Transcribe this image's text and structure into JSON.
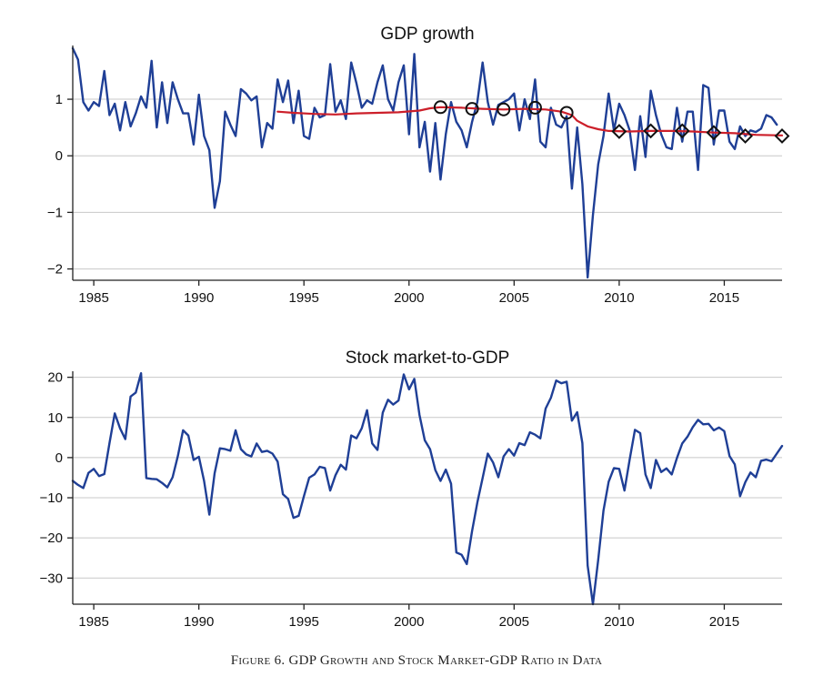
{
  "caption": "Figure 6. GDP Growth and Stock Market-GDP Ratio in Data",
  "colors": {
    "series": "#1f3f96",
    "trend": "#cc1f2a",
    "marker": "#111111",
    "grid": "#c8c8c8"
  },
  "chart_data": [
    {
      "type": "line",
      "title": "GDP growth",
      "xlabel": "",
      "ylabel": "",
      "xlim": [
        1984,
        2017.75
      ],
      "ylim": [
        -2.2,
        1.95
      ],
      "xticks": [
        1985,
        1990,
        1995,
        2000,
        2005,
        2010,
        2015
      ],
      "yticks": [
        -2,
        -1,
        0,
        1
      ],
      "ytick_labels": [
        "−2",
        "−1",
        "0",
        "1"
      ],
      "grid": true,
      "series": [
        {
          "role": "main",
          "x_start": 1984,
          "x_step": 0.25,
          "values": [
            1.9,
            1.7,
            0.95,
            0.8,
            0.95,
            0.88,
            1.5,
            0.72,
            0.92,
            0.45,
            0.95,
            0.52,
            0.75,
            1.05,
            0.85,
            1.68,
            0.5,
            1.3,
            0.58,
            1.3,
            1.0,
            0.75,
            0.75,
            0.2,
            1.08,
            0.35,
            0.1,
            -0.92,
            -0.45,
            0.78,
            0.55,
            0.35,
            1.18,
            1.1,
            0.98,
            1.05,
            0.15,
            0.58,
            0.48,
            1.35,
            0.95,
            1.33,
            0.58,
            1.15,
            0.35,
            0.3,
            0.85,
            0.68,
            0.72,
            1.62,
            0.78,
            0.98,
            0.65,
            1.65,
            1.28,
            0.85,
            0.98,
            0.92,
            1.3,
            1.6,
            1.0,
            0.8,
            1.3,
            1.6,
            0.38,
            1.8,
            0.15,
            0.6,
            -0.28,
            0.58,
            -0.42,
            0.38,
            0.95,
            0.6,
            0.45,
            0.15,
            0.6,
            0.95,
            1.65,
            0.95,
            0.55,
            0.9,
            0.95,
            1.0,
            1.1,
            0.45,
            1.0,
            0.65,
            1.35,
            0.25,
            0.15,
            0.85,
            0.55,
            0.5,
            0.7,
            -0.58,
            0.5,
            -0.5,
            -2.15,
            -1.05,
            -0.15,
            0.35,
            1.1,
            0.45,
            0.92,
            0.72,
            0.45,
            -0.25,
            0.7,
            -0.02,
            1.15,
            0.72,
            0.38,
            0.15,
            0.12,
            0.85,
            0.25,
            0.78,
            0.78,
            -0.25,
            1.25,
            1.2,
            0.2,
            0.8,
            0.8,
            0.25,
            0.12,
            0.52,
            0.35,
            0.45,
            0.42,
            0.48,
            0.72,
            0.68,
            0.55
          ]
        },
        {
          "role": "trend",
          "x": [
            1993.75,
            1994.5,
            1995.5,
            1996.5,
            1997.5,
            1998.5,
            1999.5,
            2000.5,
            2001.0,
            2001.5,
            2002.5,
            2003.5,
            2004.5,
            2005.5,
            2006.5,
            2007.25,
            2007.75,
            2008.0,
            2008.5,
            2009.0,
            2009.5,
            2010.5,
            2011.5,
            2012.5,
            2013.5,
            2014.5,
            2015.5,
            2016.5,
            2017.75
          ],
          "values": [
            0.78,
            0.76,
            0.74,
            0.73,
            0.75,
            0.76,
            0.77,
            0.8,
            0.84,
            0.86,
            0.85,
            0.83,
            0.82,
            0.83,
            0.82,
            0.78,
            0.72,
            0.62,
            0.52,
            0.47,
            0.44,
            0.43,
            0.44,
            0.44,
            0.43,
            0.41,
            0.4,
            0.37,
            0.36
          ]
        }
      ],
      "markers": [
        {
          "shape": "circle",
          "x": 2001.5,
          "y": 0.86
        },
        {
          "shape": "circle",
          "x": 2003.0,
          "y": 0.83
        },
        {
          "shape": "circle",
          "x": 2004.5,
          "y": 0.82
        },
        {
          "shape": "circle",
          "x": 2006.0,
          "y": 0.85
        },
        {
          "shape": "circle",
          "x": 2007.5,
          "y": 0.76
        },
        {
          "shape": "diamond",
          "x": 2010.0,
          "y": 0.43
        },
        {
          "shape": "diamond",
          "x": 2011.5,
          "y": 0.44
        },
        {
          "shape": "diamond",
          "x": 2013.0,
          "y": 0.44
        },
        {
          "shape": "diamond",
          "x": 2014.5,
          "y": 0.41
        },
        {
          "shape": "diamond",
          "x": 2016.0,
          "y": 0.35
        },
        {
          "shape": "diamond",
          "x": 2017.75,
          "y": 0.35
        }
      ]
    },
    {
      "type": "line",
      "title": "Stock market-to-GDP",
      "xlabel": "",
      "ylabel": "",
      "xlim": [
        1984,
        2017.75
      ],
      "ylim": [
        -36.5,
        21.5
      ],
      "xticks": [
        1985,
        1990,
        1995,
        2000,
        2005,
        2010,
        2015
      ],
      "yticks": [
        -30,
        -20,
        -10,
        0,
        10,
        20
      ],
      "ytick_labels": [
        "−30",
        "−20",
        "−10",
        "0",
        "10",
        "20"
      ],
      "grid": true,
      "series": [
        {
          "role": "main",
          "x_start": 1984,
          "x_step": 0.25,
          "values": [
            -5.8,
            -6.8,
            -7.6,
            -3.8,
            -2.8,
            -4.6,
            -4.1,
            3.6,
            11.0,
            7.3,
            4.6,
            15.2,
            16.2,
            21.0,
            -5.1,
            -5.3,
            -5.4,
            -6.3,
            -7.4,
            -4.9,
            0.4,
            6.8,
            5.5,
            -0.6,
            0.2,
            -5.8,
            -14.2,
            -3.9,
            2.3,
            2.1,
            1.7,
            6.8,
            2.1,
            0.8,
            0.3,
            3.5,
            1.4,
            1.7,
            1.0,
            -1.0,
            -9.1,
            -10.3,
            -15.0,
            -14.5,
            -9.6,
            -5.0,
            -4.2,
            -2.3,
            -2.6,
            -8.2,
            -4.4,
            -1.8,
            -3.0,
            5.5,
            4.8,
            7.3,
            11.8,
            3.5,
            1.9,
            11.2,
            14.4,
            13.2,
            14.2,
            20.7,
            17.0,
            19.6,
            10.6,
            4.3,
            2.1,
            -3.1,
            -5.8,
            -3.0,
            -6.5,
            -23.6,
            -24.2,
            -26.5,
            -18.3,
            -11.2,
            -5.1,
            1.0,
            -1.2,
            -4.9,
            0.3,
            2.1,
            0.5,
            3.6,
            3.1,
            6.3,
            5.7,
            4.8,
            12.2,
            14.9,
            19.2,
            18.5,
            18.9,
            9.2,
            11.3,
            3.6,
            -26.9,
            -36.5,
            -25.5,
            -13.2,
            -6.0,
            -2.6,
            -2.8,
            -8.2,
            -0.5,
            6.9,
            6.1,
            -4.2,
            -7.6,
            -0.6,
            -3.6,
            -2.7,
            -4.2,
            -0.1,
            3.5,
            5.2,
            7.6,
            9.4,
            8.3,
            8.4,
            6.8,
            7.5,
            6.6,
            0.4,
            -1.7,
            -9.6,
            -6.1,
            -3.7,
            -4.9,
            -0.8,
            -0.5,
            -0.9,
            1.0,
            2.9
          ]
        }
      ]
    }
  ]
}
